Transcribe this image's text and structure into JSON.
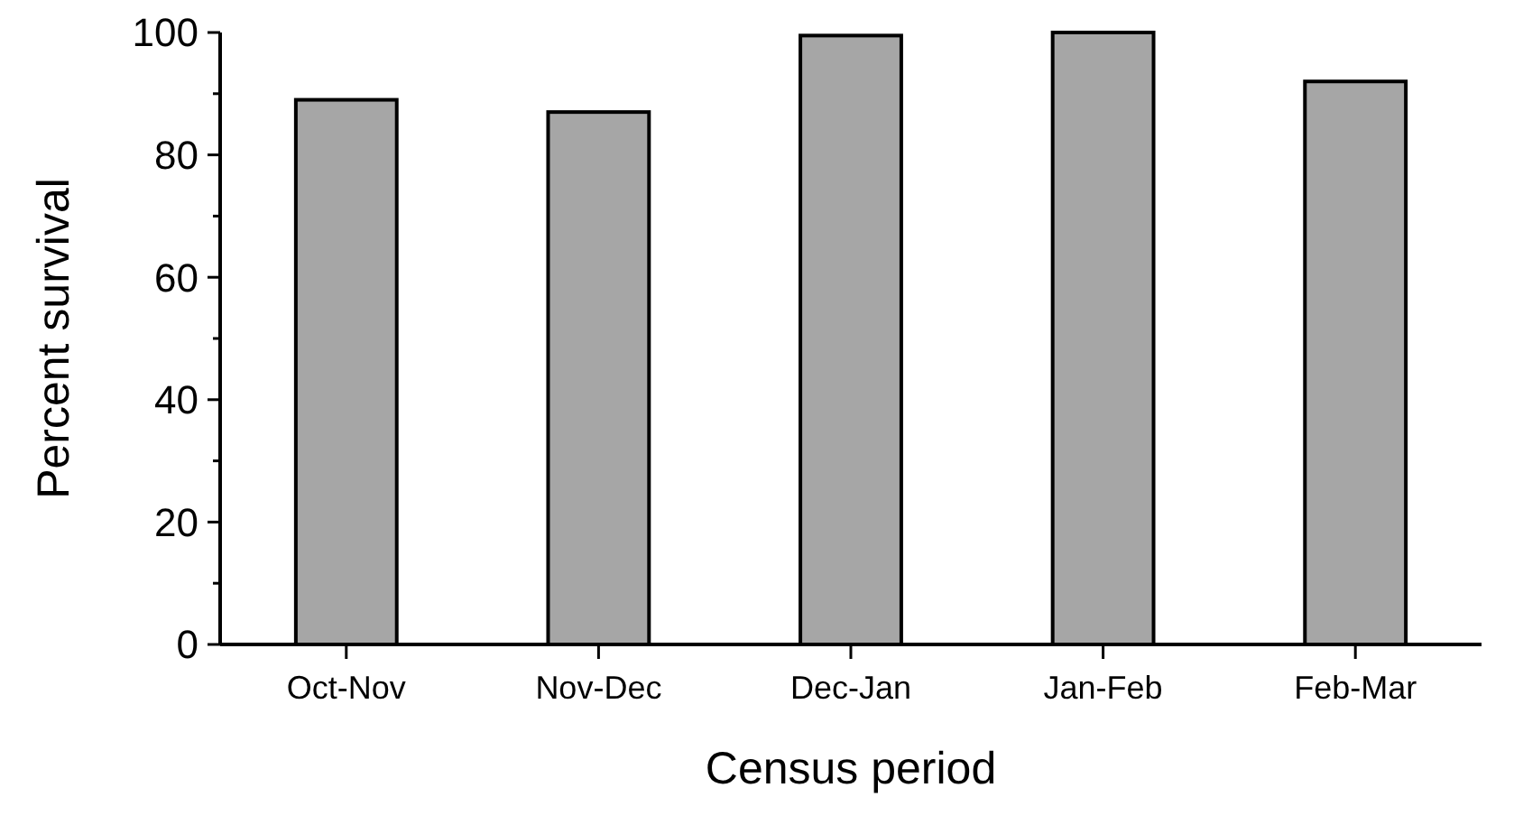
{
  "chart_data": {
    "type": "bar",
    "xlabel": "Census period",
    "ylabel": "Percent survival",
    "categories": [
      "Oct-Nov",
      "Nov-Dec",
      "Dec-Jan",
      "Jan-Feb",
      "Feb-Mar"
    ],
    "values": [
      89,
      87,
      99.5,
      100,
      92
    ],
    "color": "#a6a6a6",
    "ylim": [
      0,
      100
    ],
    "yticks": [
      0,
      {
        "value": 10,
        "label": null
      },
      20,
      {
        "value": 30,
        "label": null
      },
      40,
      {
        "value": 50,
        "label": null
      },
      60,
      {
        "value": 70,
        "label": null
      },
      80,
      {
        "value": 90,
        "label": null
      },
      100
    ],
    "grid": false
  }
}
